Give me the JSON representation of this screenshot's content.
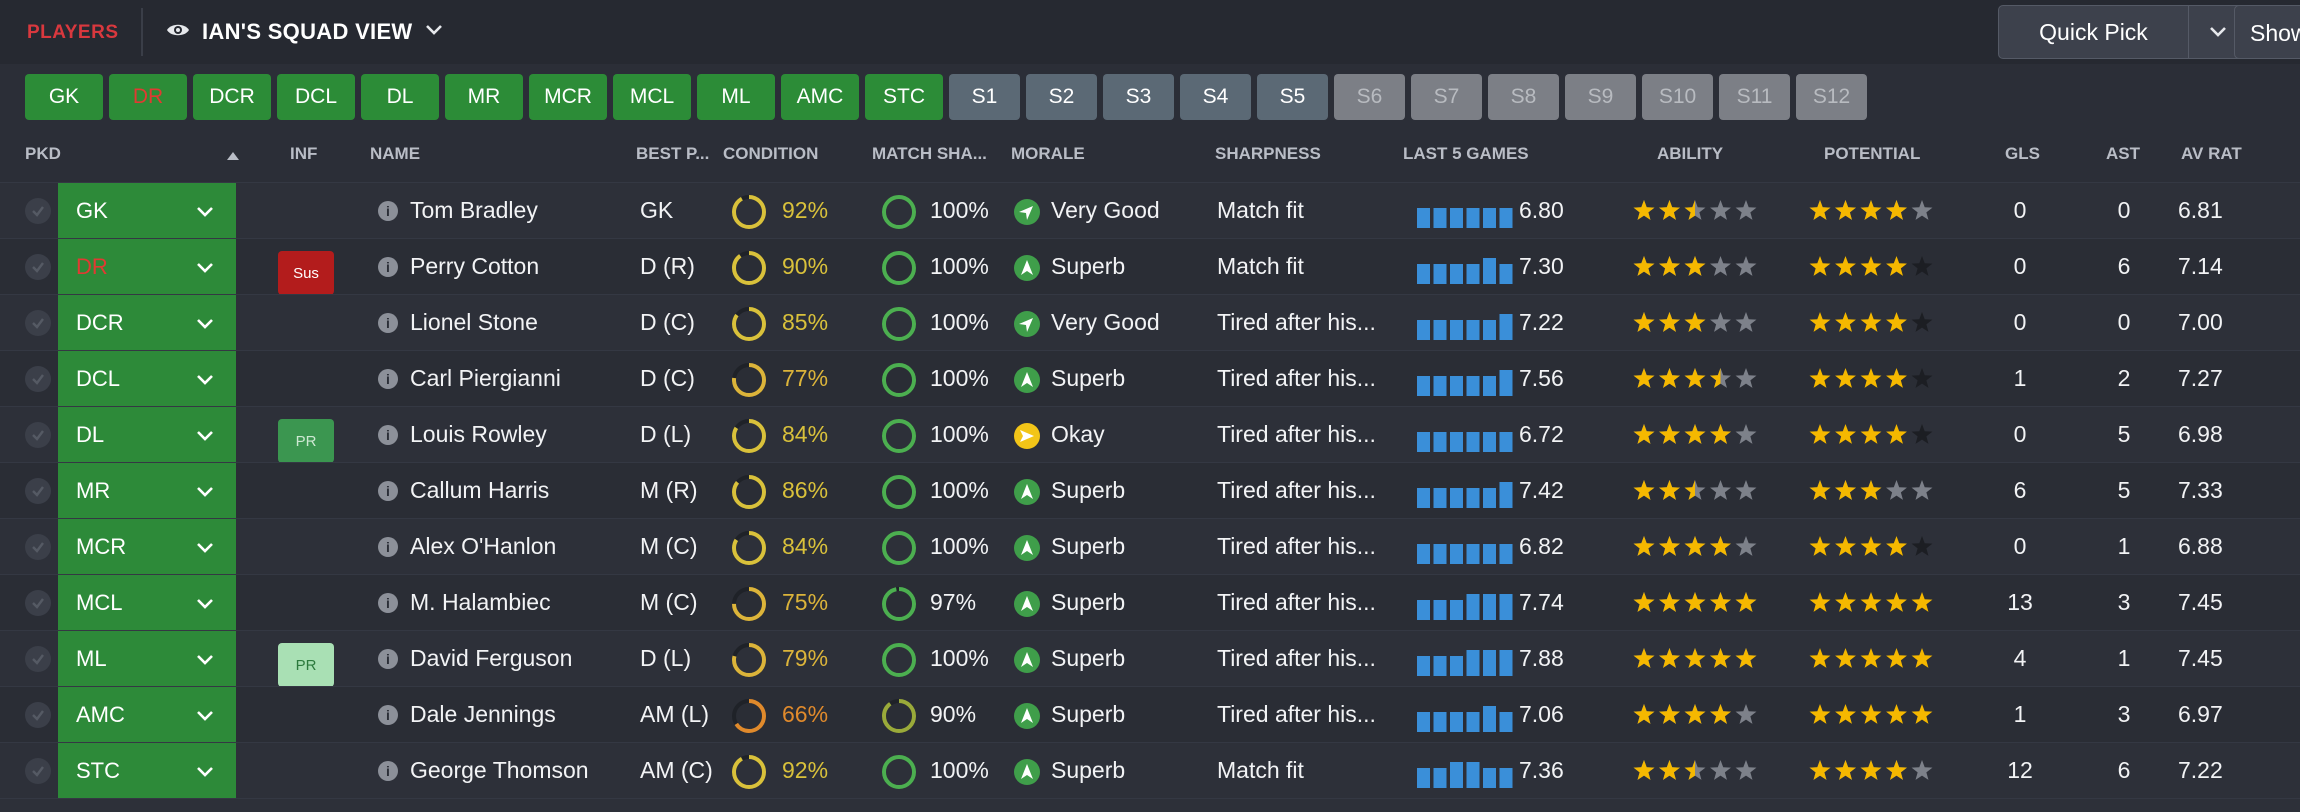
{
  "topbar": {
    "section_label": "PLAYERS",
    "view_label": "IAN'S SQUAD VIEW",
    "view_icon": "eye-icon",
    "quick_pick_label": "Quick Pick",
    "show_label": "Show"
  },
  "chips": [
    {
      "label": "GK",
      "kind": "pos"
    },
    {
      "label": "DR",
      "kind": "pos",
      "red": true
    },
    {
      "label": "DCR",
      "kind": "pos"
    },
    {
      "label": "DCL",
      "kind": "pos"
    },
    {
      "label": "DL",
      "kind": "pos"
    },
    {
      "label": "MR",
      "kind": "pos"
    },
    {
      "label": "MCR",
      "kind": "pos"
    },
    {
      "label": "MCL",
      "kind": "pos"
    },
    {
      "label": "ML",
      "kind": "pos"
    },
    {
      "label": "AMC",
      "kind": "pos"
    },
    {
      "label": "STC",
      "kind": "pos"
    },
    {
      "label": "S1",
      "kind": "slot"
    },
    {
      "label": "S2",
      "kind": "slot"
    },
    {
      "label": "S3",
      "kind": "slot"
    },
    {
      "label": "S4",
      "kind": "slot"
    },
    {
      "label": "S5",
      "kind": "slot"
    },
    {
      "label": "S6",
      "kind": "dim"
    },
    {
      "label": "S7",
      "kind": "dim"
    },
    {
      "label": "S8",
      "kind": "dim"
    },
    {
      "label": "S9",
      "kind": "dim"
    },
    {
      "label": "S10",
      "kind": "dim"
    },
    {
      "label": "S11",
      "kind": "dim"
    },
    {
      "label": "S12",
      "kind": "dim"
    }
  ],
  "columns": {
    "pkd": "PKD",
    "inf": "INF",
    "name": "NAME",
    "best_pos": "BEST P...",
    "condition": "CONDITION",
    "match_sharpness": "MATCH SHA...",
    "morale": "MORALE",
    "sharpness": "SHARPNESS",
    "last5": "LAST 5 GAMES",
    "ability": "ABILITY",
    "potential": "POTENTIAL",
    "gls": "GLS",
    "ast": "AST",
    "av_rat": "AV RAT"
  },
  "colors": {
    "pos_green": "#2d8a39",
    "ring_green": "#4caf50",
    "ring_yellow": "#d9c13b",
    "ring_orange": "#e08a2c",
    "star": "#f5b800",
    "bar_blue": "#3a8fd9",
    "morale_green": "#3f9e4a",
    "morale_yellow": "#f2c518"
  },
  "players": [
    {
      "pos": "GK",
      "red": false,
      "inf": "",
      "name": "Tom Bradley",
      "best": "GK",
      "cond": 92,
      "ms": 100,
      "morale": "Very Good",
      "morale_icon": "arrow-up-right-icon",
      "sharp": "Match fit",
      "bars": [
        2,
        2,
        2,
        2,
        2,
        2
      ],
      "avg5": "6.80",
      "abil": 2.5,
      "pot": 4,
      "pot_grey": true,
      "gls": "0",
      "ast": "0",
      "avr": "6.81"
    },
    {
      "pos": "DR",
      "red": true,
      "inf": "Sus",
      "name": "Perry Cotton",
      "best": "D (R)",
      "cond": 90,
      "ms": 100,
      "morale": "Superb",
      "morale_icon": "arrow-up-icon",
      "sharp": "Match fit",
      "bars": [
        2,
        2,
        2,
        2,
        3,
        2
      ],
      "avg5": "7.30",
      "abil": 3,
      "pot": 4,
      "pot_grey": false,
      "gls": "0",
      "ast": "6",
      "avr": "7.14"
    },
    {
      "pos": "DCR",
      "red": false,
      "inf": "",
      "name": "Lionel Stone",
      "best": "D (C)",
      "cond": 85,
      "ms": 100,
      "morale": "Very Good",
      "morale_icon": "arrow-up-right-icon",
      "sharp": "Tired after his...",
      "bars": [
        2,
        2,
        2,
        2,
        2,
        3
      ],
      "avg5": "7.22",
      "abil": 3,
      "pot": 4,
      "pot_grey": false,
      "gls": "0",
      "ast": "0",
      "avr": "7.00"
    },
    {
      "pos": "DCL",
      "red": false,
      "inf": "",
      "name": "Carl Piergianni",
      "best": "D (C)",
      "cond": 77,
      "ms": 100,
      "morale": "Superb",
      "morale_icon": "arrow-up-icon",
      "sharp": "Tired after his...",
      "bars": [
        2,
        2,
        2,
        2,
        2,
        3
      ],
      "avg5": "7.56",
      "abil": 3.5,
      "pot": 4,
      "pot_grey": false,
      "gls": "1",
      "ast": "2",
      "avr": "7.27"
    },
    {
      "pos": "DL",
      "red": false,
      "inf": "PR",
      "name": "Louis Rowley",
      "best": "D (L)",
      "cond": 84,
      "ms": 100,
      "morale": "Okay",
      "morale_icon": "arrow-right-icon",
      "sharp": "Tired after his...",
      "bars": [
        2,
        2,
        2,
        2,
        2,
        2
      ],
      "avg5": "6.72",
      "abil": 4,
      "pot": 4,
      "pot_grey": false,
      "gls": "0",
      "ast": "5",
      "avr": "6.98"
    },
    {
      "pos": "MR",
      "red": false,
      "inf": "",
      "name": "Callum Harris",
      "best": "M (R)",
      "cond": 86,
      "ms": 100,
      "morale": "Superb",
      "morale_icon": "arrow-up-icon",
      "sharp": "Tired after his...",
      "bars": [
        2,
        2,
        2,
        2,
        2,
        3
      ],
      "avg5": "7.42",
      "abil": 2.5,
      "pot": 3,
      "pot_grey": true,
      "gls": "6",
      "ast": "5",
      "avr": "7.33"
    },
    {
      "pos": "MCR",
      "red": false,
      "inf": "",
      "name": "Alex O'Hanlon",
      "best": "M (C)",
      "cond": 84,
      "ms": 100,
      "morale": "Superb",
      "morale_icon": "arrow-up-icon",
      "sharp": "Tired after his...",
      "bars": [
        2,
        2,
        2,
        2,
        2,
        2
      ],
      "avg5": "6.82",
      "abil": 4,
      "pot": 4,
      "pot_grey": false,
      "gls": "0",
      "ast": "1",
      "avr": "6.88"
    },
    {
      "pos": "MCL",
      "red": false,
      "inf": "",
      "name": "M. Halambiec",
      "best": "M (C)",
      "cond": 75,
      "ms": 97,
      "morale": "Superb",
      "morale_icon": "arrow-up-icon",
      "sharp": "Tired after his...",
      "bars": [
        2,
        2,
        2,
        3,
        3,
        3
      ],
      "avg5": "7.74",
      "abil": 5,
      "pot": 5,
      "pot_grey": false,
      "gls": "13",
      "ast": "3",
      "avr": "7.45"
    },
    {
      "pos": "ML",
      "red": false,
      "inf": "PR",
      "inf_light": true,
      "name": "David Ferguson",
      "best": "D (L)",
      "cond": 79,
      "ms": 100,
      "morale": "Superb",
      "morale_icon": "arrow-up-icon",
      "sharp": "Tired after his...",
      "bars": [
        2,
        2,
        2,
        3,
        3,
        3
      ],
      "avg5": "7.88",
      "abil": 5,
      "pot": 5,
      "pot_grey": false,
      "gls": "4",
      "ast": "1",
      "avr": "7.45"
    },
    {
      "pos": "AMC",
      "red": false,
      "inf": "",
      "name": "Dale Jennings",
      "best": "AM (L)",
      "cond": 66,
      "ms": 90,
      "morale": "Superb",
      "morale_icon": "arrow-up-icon",
      "sharp": "Tired after his...",
      "bars": [
        2,
        2,
        2,
        2,
        3,
        2
      ],
      "avg5": "7.06",
      "abil": 4,
      "pot": 5,
      "pot_grey": false,
      "gls": "1",
      "ast": "3",
      "avr": "6.97"
    },
    {
      "pos": "STC",
      "red": false,
      "inf": "",
      "name": "George Thomson",
      "best": "AM (C)",
      "cond": 92,
      "ms": 100,
      "morale": "Superb",
      "morale_icon": "arrow-up-icon",
      "sharp": "Match fit",
      "bars": [
        2,
        2,
        3,
        3,
        2,
        2
      ],
      "avg5": "7.36",
      "abil": 2.5,
      "pot": 4,
      "pot_grey": true,
      "gls": "12",
      "ast": "6",
      "avr": "7.22"
    }
  ]
}
